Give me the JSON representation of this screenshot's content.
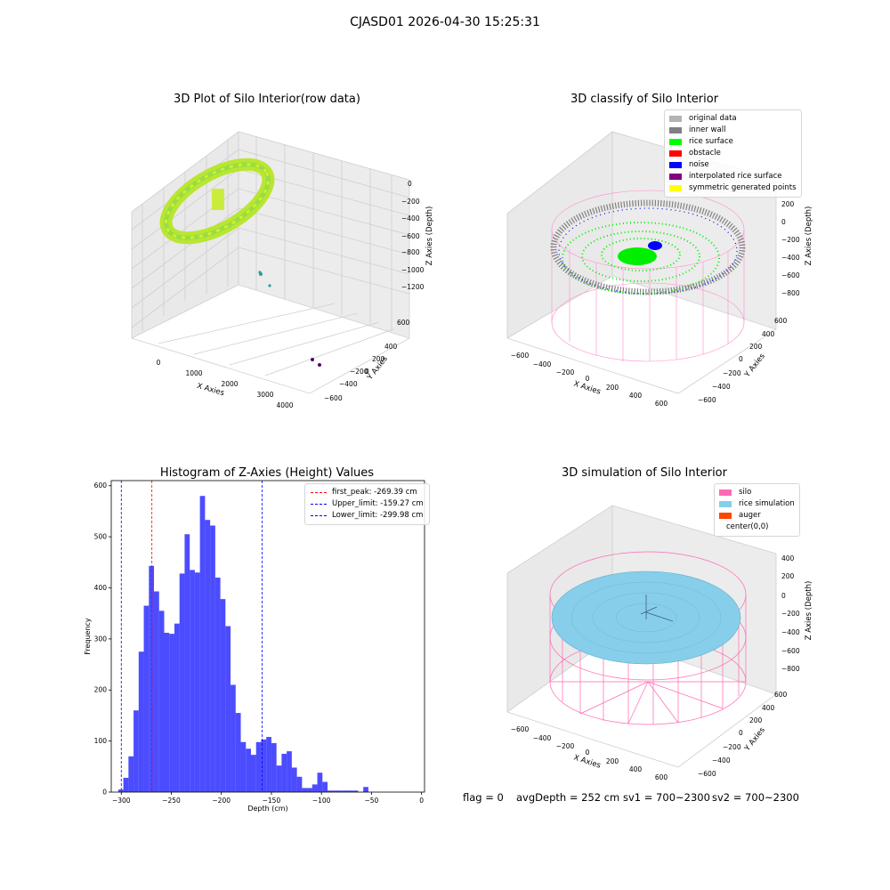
{
  "suptitle": "CJASD01 2026-04-30 15:25:31",
  "panels": {
    "raw": {
      "title": "3D Plot of Silo Interior(row data)",
      "xlabel": "X Axies",
      "ylabel": "Y Axies",
      "zlabel": "Z Axies (Depth)",
      "xticks": [
        "0",
        "1000",
        "2000",
        "3000",
        "4000"
      ],
      "yticks": [
        "600",
        "400",
        "200",
        "0",
        "−200",
        "−400",
        "−600"
      ],
      "zticks": [
        "0",
        "−200",
        "−400",
        "−600",
        "−800",
        "−1000",
        "−1200"
      ]
    },
    "classify": {
      "title": "3D classify of Silo Interior",
      "xlabel": "X Axies",
      "ylabel": "Y Axies",
      "zlabel": "Z Axies (Depth)",
      "xticks": [
        "−600",
        "−400",
        "−200",
        "0",
        "200",
        "400",
        "600"
      ],
      "yticks": [
        "600",
        "400",
        "200",
        "0",
        "−200",
        "−400",
        "−600"
      ],
      "zticks": [
        "200",
        "0",
        "−200",
        "−400",
        "−600",
        "−800"
      ],
      "legend": [
        {
          "label": "original data",
          "color": "#b3b3b3"
        },
        {
          "label": "inner wall",
          "color": "#808080"
        },
        {
          "label": "rice surface",
          "color": "#00ff00"
        },
        {
          "label": "obstacle",
          "color": "#ff0000"
        },
        {
          "label": "noise",
          "color": "#0000ff"
        },
        {
          "label": "interpolated rice surface",
          "color": "#800080"
        },
        {
          "label": "symmetric generated points",
          "color": "#ffff00"
        }
      ]
    },
    "sim": {
      "title": "3D simulation of Silo Interior",
      "xlabel": "X Axies",
      "ylabel": "Y Axies",
      "zlabel": "Z Axies (Depth)",
      "xticks": [
        "−600",
        "−400",
        "−200",
        "0",
        "200",
        "400",
        "600"
      ],
      "yticks": [
        "600",
        "400",
        "200",
        "0",
        "−200",
        "−400",
        "−600"
      ],
      "zticks": [
        "400",
        "200",
        "0",
        "−200",
        "−400",
        "−600",
        "−800"
      ],
      "legend": [
        {
          "label": "silo",
          "color": "#ff69b4"
        },
        {
          "label": "rice simulation",
          "color": "#87ceeb"
        },
        {
          "label": "auger",
          "color": "#ff4500"
        },
        {
          "label": "center(0,0)",
          "color": ""
        }
      ]
    }
  },
  "footer": {
    "flag": "flag = 0",
    "avg": "avgDepth = 252 cm",
    "sv1": "sv1 = 700~2300",
    "sv2": "sv2 = 700~2300"
  },
  "chart_data": [
    {
      "type": "bar",
      "title": "Histogram of Z-Axies (Height) Values",
      "xlabel": "Depth (cm)",
      "ylabel": "Frequency",
      "xlim": [
        -310,
        3
      ],
      "ylim": [
        0,
        610
      ],
      "xticks": [
        -300,
        -250,
        -200,
        -150,
        -100,
        -50,
        0
      ],
      "yticks": [
        0,
        100,
        200,
        300,
        400,
        500,
        600
      ],
      "bar_color": "#0000ff",
      "bins": {
        "start": -303,
        "width": 5.1
      },
      "values": [
        5,
        28,
        70,
        160,
        275,
        365,
        443,
        393,
        355,
        312,
        310,
        330,
        428,
        505,
        435,
        430,
        580,
        533,
        522,
        420,
        378,
        325,
        210,
        155,
        98,
        85,
        73,
        98,
        103,
        108,
        96,
        52,
        75,
        80,
        48,
        30,
        8,
        8,
        15,
        38,
        20,
        3,
        3,
        3,
        3,
        3,
        3,
        0,
        10
      ],
      "lines": [
        {
          "name": "first_peak: -269.39 cm",
          "x": -269.39,
          "color": "#ff0000"
        },
        {
          "name": "Upper_limit: -159.27 cm",
          "x": -159.27,
          "color": "#0000ff"
        },
        {
          "name": "Lower_limit: -299.98 cm",
          "x": -299.98,
          "color": "#0000ff"
        }
      ],
      "legend_position": "upper right"
    }
  ]
}
